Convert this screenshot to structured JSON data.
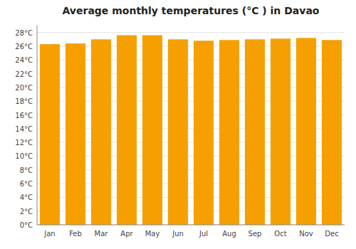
{
  "chart_data": {
    "type": "bar",
    "title": "Average monthly temperatures (°C ) in Davao",
    "categories": [
      "Jan",
      "Feb",
      "Mar",
      "Apr",
      "May",
      "Jun",
      "Jul",
      "Aug",
      "Sep",
      "Oct",
      "Nov",
      "Dec"
    ],
    "values": [
      26.3,
      26.4,
      27.0,
      27.6,
      27.6,
      27.0,
      26.8,
      26.9,
      27.0,
      27.1,
      27.2,
      26.9
    ],
    "color": "#F5A000",
    "ylim": [
      0,
      29
    ],
    "yticks": [
      {
        "value": 0,
        "label": "0°C"
      },
      {
        "value": 2,
        "label": "2°C"
      },
      {
        "value": 4,
        "label": "4°C"
      },
      {
        "value": 6,
        "label": "6°C"
      },
      {
        "value": 8,
        "label": "8°C"
      },
      {
        "value": 10,
        "label": "10°C"
      },
      {
        "value": 12,
        "label": "12°C"
      },
      {
        "value": 14,
        "label": "14°C"
      },
      {
        "value": 16,
        "label": "16°C"
      },
      {
        "value": 18,
        "label": "18°C"
      },
      {
        "value": 20,
        "label": "20°C"
      },
      {
        "value": 22,
        "label": "22°C"
      },
      {
        "value": 24,
        "label": "24°C"
      },
      {
        "value": 26,
        "label": "26°C"
      },
      {
        "value": 28,
        "label": "28°C"
      }
    ],
    "grid": true
  }
}
